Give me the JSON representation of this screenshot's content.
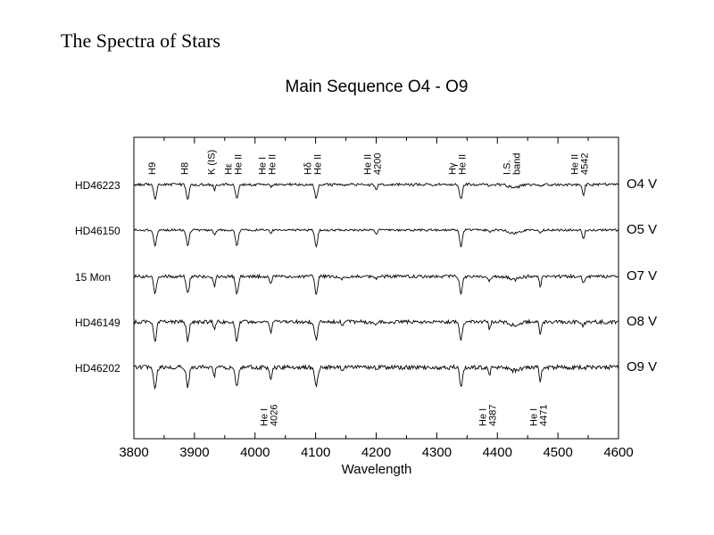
{
  "slide": {
    "title": "The Spectra of Stars"
  },
  "chart_data": {
    "type": "line",
    "title": "Main Sequence O4 - O9",
    "xlabel": "Wavelength",
    "ylabel": "",
    "xlim": [
      3800,
      4600
    ],
    "xticks": [
      3800,
      3900,
      4000,
      4100,
      4200,
      4300,
      4400,
      4500,
      4600
    ],
    "grid": false,
    "line_color": "#000000",
    "series": [
      {
        "name": "HD46223",
        "spectral_type": "O4 V"
      },
      {
        "name": "HD46150",
        "spectral_type": "O5 V"
      },
      {
        "name": "15 Mon",
        "spectral_type": "O7 V"
      },
      {
        "name": "HD46149",
        "spectral_type": "O8 V"
      },
      {
        "name": "HD46202",
        "spectral_type": "O9 V"
      }
    ],
    "lines_top": [
      {
        "x": 3835,
        "label": [
          "H9"
        ]
      },
      {
        "x": 3889,
        "label": [
          "H8"
        ]
      },
      {
        "x": 3933,
        "label": [
          "K (IS)"
        ]
      },
      {
        "x": 3970,
        "label": [
          "Hε",
          "He II"
        ]
      },
      {
        "x": 4026,
        "label": [
          "He I",
          "He II"
        ]
      },
      {
        "x": 4101,
        "label": [
          "Hδ",
          "He II"
        ]
      },
      {
        "x": 4200,
        "label": [
          "He II",
          "4200"
        ]
      },
      {
        "x": 4340,
        "label": [
          "Hγ",
          "He II"
        ]
      },
      {
        "x": 4430,
        "label": [
          "I.S.",
          "band"
        ]
      },
      {
        "x": 4542,
        "label": [
          "He II",
          "4542"
        ]
      }
    ],
    "lines_bottom": [
      {
        "x": 4026,
        "label": [
          "He I",
          "4026"
        ]
      },
      {
        "x": 4387,
        "label": [
          "He I",
          "4387"
        ]
      },
      {
        "x": 4471,
        "label": [
          "He I",
          "4471"
        ]
      }
    ]
  }
}
